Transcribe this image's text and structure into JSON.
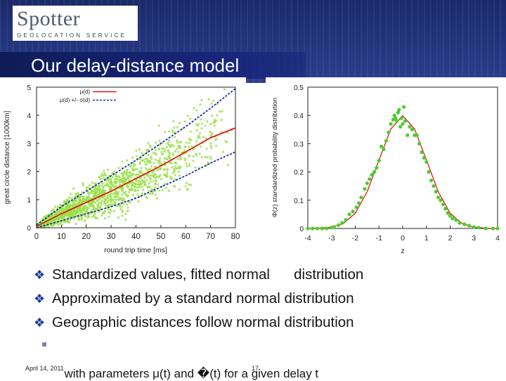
{
  "header": {
    "logo_title": "Spotter",
    "logo_subtitle": "GEOLOCATION SERVICE",
    "slide_title": "Our delay-distance model",
    "band_color": "#24357e"
  },
  "bullets": [
    "Standardized values, fitted normal      distribution",
    "Approximated by a standard normal distribution",
    "Geographic distances follow normal distribution"
  ],
  "sub_bullet": "with parameters μ(t) and �(t) for a given delay t",
  "footer": {
    "date": "April 14, 2011",
    "page": "17"
  },
  "colors": {
    "scatter": "#9be04a",
    "mean": "#e01818",
    "sigma": "#1a2fa8",
    "points": "#4ccc2c"
  },
  "chart_data": [
    {
      "type": "scatter",
      "xlabel": "round trip time [ms]",
      "ylabel": "great circle distance [1000km]",
      "xlim": [
        0,
        80
      ],
      "ylim": [
        0,
        5
      ],
      "x_ticks": [
        "0",
        "10",
        "20",
        "30",
        "40",
        "50",
        "60",
        "70",
        "80"
      ],
      "y_ticks": [
        "0",
        "1",
        "2",
        "3",
        "4",
        "5"
      ],
      "grid": false,
      "legend_position": "top-left",
      "series": [
        {
          "name": "μ(d)",
          "style": "line",
          "color": "#e01818",
          "x": [
            0,
            10,
            20,
            30,
            40,
            50,
            60,
            70,
            80
          ],
          "y": [
            0.05,
            0.5,
            0.9,
            1.3,
            1.75,
            2.2,
            2.7,
            3.2,
            3.55
          ]
        },
        {
          "name": "μ(d) +/- σ(d)",
          "style": "dashed",
          "color": "#1a2fa8",
          "x": [
            0,
            10,
            20,
            30,
            40,
            50,
            60,
            70,
            80
          ],
          "y": [
            0.1,
            0.75,
            1.3,
            1.85,
            2.4,
            3.0,
            3.6,
            4.25,
            4.95
          ]
        },
        {
          "name": "",
          "style": "dashed",
          "color": "#1a2fa8",
          "x": [
            0,
            10,
            20,
            30,
            40,
            50,
            60,
            70,
            80
          ],
          "y": [
            0.0,
            0.25,
            0.5,
            0.75,
            1.05,
            1.45,
            1.85,
            2.3,
            2.7
          ]
        }
      ]
    },
    {
      "type": "scatter",
      "xlabel": "z",
      "ylabel": "Φ(z) standardized probability distribution",
      "xlim": [
        -4,
        4
      ],
      "ylim": [
        0,
        0.5
      ],
      "x_ticks": [
        "-4",
        "-3",
        "-2",
        "-1",
        "0",
        "1",
        "2",
        "3",
        "4"
      ],
      "y_ticks": [
        "0",
        "0.1",
        "0.2",
        "0.3",
        "0.4",
        "0.5"
      ],
      "grid": false,
      "series": [
        {
          "name": "",
          "style": "points",
          "color": "#4ccc2c",
          "x": [
            -4.0,
            -3.8,
            -3.6,
            -3.4,
            -3.2,
            -3.0,
            -2.9,
            -2.7,
            -2.55,
            -2.4,
            -2.25,
            -2.1,
            -1.95,
            -1.85,
            -1.75,
            -1.6,
            -1.5,
            -1.4,
            -1.3,
            -1.2,
            -1.1,
            -1.0,
            -0.9,
            -0.8,
            -0.7,
            -0.6,
            -0.5,
            -0.4,
            -0.35,
            -0.3,
            -0.25,
            -0.2,
            -0.15,
            -0.1,
            -0.05,
            0.0,
            0.05,
            0.1,
            0.2,
            0.3,
            0.4,
            0.5,
            0.6,
            0.7,
            0.8,
            0.9,
            1.0,
            1.1,
            1.2,
            1.3,
            1.4,
            1.5,
            1.6,
            1.7,
            1.8,
            1.9,
            2.0,
            2.1,
            2.25,
            2.4,
            2.6,
            2.8,
            3.0,
            3.2,
            3.5,
            3.8,
            4.0
          ],
          "y": [
            0.0,
            0.0,
            0.0,
            0.0,
            0.0,
            0.003,
            0.005,
            0.012,
            0.02,
            0.03,
            0.05,
            0.06,
            0.075,
            0.09,
            0.11,
            0.14,
            0.16,
            0.175,
            0.19,
            0.2,
            0.215,
            0.24,
            0.29,
            0.28,
            0.31,
            0.34,
            0.37,
            0.385,
            0.4,
            0.39,
            0.38,
            0.41,
            0.42,
            0.36,
            0.39,
            0.37,
            0.43,
            0.38,
            0.33,
            0.36,
            0.35,
            0.33,
            0.33,
            0.3,
            0.27,
            0.25,
            0.235,
            0.2,
            0.17,
            0.15,
            0.13,
            0.11,
            0.1,
            0.085,
            0.07,
            0.055,
            0.045,
            0.035,
            0.03,
            0.02,
            0.015,
            0.01,
            0.005,
            0.003,
            0.0,
            0.0,
            0.0
          ]
        },
        {
          "name": "",
          "style": "line",
          "color": "#e01818",
          "x": [
            -4.0,
            -3.5,
            -3.0,
            -2.5,
            -2.0,
            -1.5,
            -1.0,
            -0.5,
            0.0,
            0.5,
            1.0,
            1.5,
            2.0,
            2.5,
            3.0,
            3.5,
            4.0
          ],
          "y": [
            0.0001,
            0.0009,
            0.0044,
            0.0175,
            0.054,
            0.1295,
            0.242,
            0.352,
            0.3989,
            0.352,
            0.242,
            0.1295,
            0.054,
            0.0175,
            0.0044,
            0.0009,
            0.0001
          ]
        }
      ]
    }
  ]
}
